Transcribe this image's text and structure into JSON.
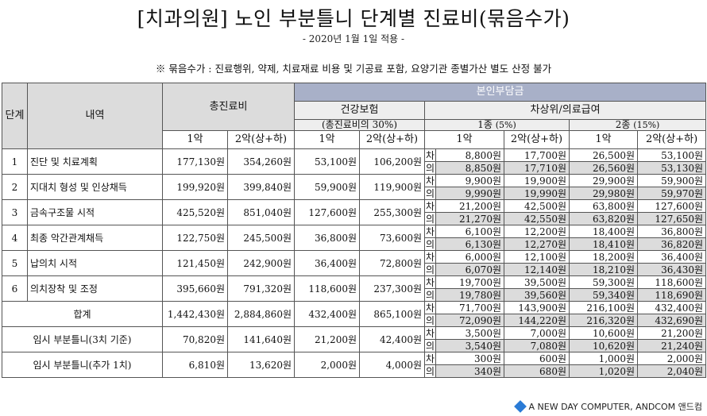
{
  "title": "[치과의원] 노인 부분틀니 단계별 진료비(묶음수가)",
  "subtitle": "- 2020년 1월 1일 적용 -",
  "note": "※ 묶음수가 : 진료행위, 약제, 치료재료 비용 및 기공료 포함, 요양기관 종별가산 별도 산정 불가",
  "headers": {
    "stage": "단계",
    "desc": "내역",
    "total": "총진료비",
    "copay": "본인부담금",
    "insurance": "건강보험",
    "insurance_pct": "(총진료비의 30%)",
    "medical_aid": "차상위/의료급여",
    "class1": "1종",
    "class1_pct": "(5%)",
    "class2": "2종",
    "class2_pct": "(15%)",
    "arch1": "1악",
    "arch2": "2악(상+하)"
  },
  "marks": {
    "cha": "차",
    "ui": "의"
  },
  "rows": [
    {
      "stage": "1",
      "desc": "진단 및 치료계획",
      "t1": "177,130원",
      "t2": "354,260원",
      "h1": "53,100원",
      "h2": "106,200원",
      "c1a": "8,800원",
      "c1b": "17,700원",
      "c2a": "26,500원",
      "c2b": "53,100원",
      "m1a": "8,850원",
      "m1b": "17,710원",
      "m2a": "26,560원",
      "m2b": "53,130원"
    },
    {
      "stage": "2",
      "desc": "지대치 형성 및 인상채득",
      "t1": "199,920원",
      "t2": "399,840원",
      "h1": "59,900원",
      "h2": "119,900원",
      "c1a": "9,900원",
      "c1b": "19,900원",
      "c2a": "29,900원",
      "c2b": "59,900원",
      "m1a": "9,990원",
      "m1b": "19,990원",
      "m2a": "29,980원",
      "m2b": "59,970원"
    },
    {
      "stage": "3",
      "desc": "금속구조물 시적",
      "t1": "425,520원",
      "t2": "851,040원",
      "h1": "127,600원",
      "h2": "255,300원",
      "c1a": "21,200원",
      "c1b": "42,500원",
      "c2a": "63,800원",
      "c2b": "127,600원",
      "m1a": "21,270원",
      "m1b": "42,550원",
      "m2a": "63,820원",
      "m2b": "127,650원"
    },
    {
      "stage": "4",
      "desc": "최종 악간관계채득",
      "t1": "122,750원",
      "t2": "245,500원",
      "h1": "36,800원",
      "h2": "73,600원",
      "c1a": "6,100원",
      "c1b": "12,200원",
      "c2a": "18,400원",
      "c2b": "36,800원",
      "m1a": "6,130원",
      "m1b": "12,270원",
      "m2a": "18,410원",
      "m2b": "36,820원"
    },
    {
      "stage": "5",
      "desc": "납의치 시적",
      "t1": "121,450원",
      "t2": "242,900원",
      "h1": "36,400원",
      "h2": "72,800원",
      "c1a": "6,000원",
      "c1b": "12,100원",
      "c2a": "18,200원",
      "c2b": "36,400원",
      "m1a": "6,070원",
      "m1b": "12,140원",
      "m2a": "18,210원",
      "m2b": "36,430원"
    },
    {
      "stage": "6",
      "desc": "의치장착 및 조정",
      "t1": "395,660원",
      "t2": "791,320원",
      "h1": "118,600원",
      "h2": "237,300원",
      "c1a": "19,700원",
      "c1b": "39,500원",
      "c2a": "59,300원",
      "c2b": "118,600원",
      "m1a": "19,780원",
      "m1b": "39,560원",
      "m2a": "59,340원",
      "m2b": "118,690원"
    }
  ],
  "total": {
    "label": "합계",
    "t1": "1,442,430원",
    "t2": "2,884,860원",
    "h1": "432,400원",
    "h2": "865,100원",
    "c1a": "71,700원",
    "c1b": "143,900원",
    "c2a": "216,100원",
    "c2b": "432,400원",
    "m1a": "72,090원",
    "m1b": "144,220원",
    "m2a": "216,320원",
    "m2b": "432,690원"
  },
  "extras": [
    {
      "label": "임시 부분틀니(3치 기준)",
      "t1": "70,820원",
      "t2": "141,640원",
      "h1": "21,200원",
      "h2": "42,400원",
      "c1a": "3,500원",
      "c1b": "7,000원",
      "c2a": "10,600원",
      "c2b": "21,200원",
      "m1a": "3,540원",
      "m1b": "7,080원",
      "m2a": "10,620원",
      "m2b": "21,240원"
    },
    {
      "label": "임시 부분틀니(추가 1치)",
      "t1": "6,810원",
      "t2": "13,620원",
      "h1": "2,000원",
      "h2": "4,000원",
      "c1a": "300원",
      "c1b": "600원",
      "c2a": "1,000원",
      "c2b": "2,000원",
      "m1a": "340원",
      "m1b": "680원",
      "m2a": "1,020원",
      "m2b": "2,040원"
    }
  ],
  "brand": "A NEW DAY COMPUTER, ANDCOM 앤드컴"
}
